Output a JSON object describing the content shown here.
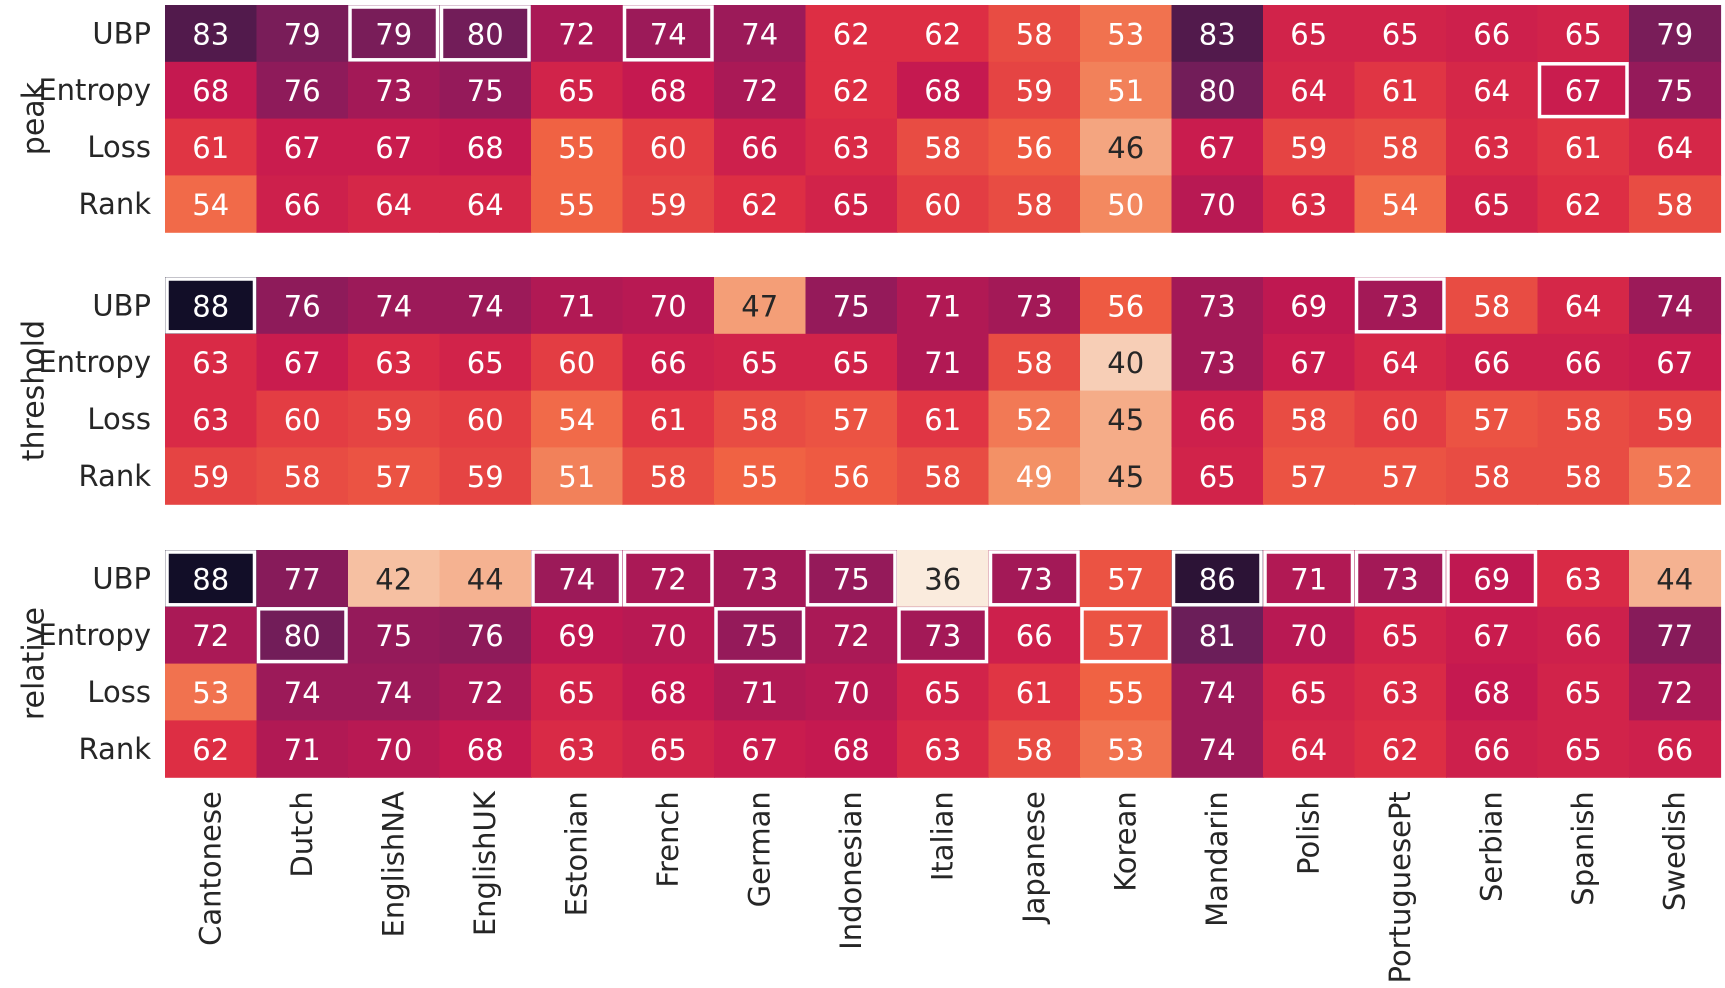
{
  "chart_data": {
    "type": "heatmap",
    "title": "",
    "xlabel": "",
    "ylabel": "",
    "value_range": [
      36,
      88
    ],
    "colormap": "rocket",
    "categories": [
      "Cantonese",
      "Dutch",
      "EnglishNA",
      "EnglishUK",
      "Estonian",
      "French",
      "German",
      "Indonesian",
      "Italian",
      "Japanese",
      "Korean",
      "Mandarin",
      "Polish",
      "PortuguesePt",
      "Serbian",
      "Spanish",
      "Swedish"
    ],
    "rows": [
      "UBP",
      "Entropy",
      "Loss",
      "Rank"
    ],
    "groups": [
      {
        "name": "peak",
        "series": [
          {
            "name": "UBP",
            "values": [
              83,
              79,
              79,
              80,
              72,
              74,
              74,
              62,
              62,
              58,
              53,
              83,
              65,
              65,
              66,
              65,
              79
            ]
          },
          {
            "name": "Entropy",
            "values": [
              68,
              76,
              73,
              75,
              65,
              68,
              72,
              62,
              68,
              59,
              51,
              80,
              64,
              61,
              64,
              67,
              75
            ]
          },
          {
            "name": "Loss",
            "values": [
              61,
              67,
              67,
              68,
              55,
              60,
              66,
              63,
              58,
              56,
              46,
              67,
              59,
              58,
              63,
              61,
              64
            ]
          },
          {
            "name": "Rank",
            "values": [
              54,
              66,
              64,
              64,
              55,
              59,
              62,
              65,
              60,
              58,
              50,
              70,
              63,
              54,
              65,
              62,
              58
            ]
          }
        ],
        "highlighted": [
          [
            0,
            2
          ],
          [
            0,
            3
          ],
          [
            0,
            5
          ],
          [
            1,
            15
          ]
        ]
      },
      {
        "name": "threshold",
        "series": [
          {
            "name": "UBP",
            "values": [
              88,
              76,
              74,
              74,
              71,
              70,
              47,
              75,
              71,
              73,
              56,
              73,
              69,
              73,
              58,
              64,
              74
            ]
          },
          {
            "name": "Entropy",
            "values": [
              63,
              67,
              63,
              65,
              60,
              66,
              65,
              65,
              71,
              58,
              40,
              73,
              67,
              64,
              66,
              66,
              67
            ]
          },
          {
            "name": "Loss",
            "values": [
              63,
              60,
              59,
              60,
              54,
              61,
              58,
              57,
              61,
              52,
              45,
              66,
              58,
              60,
              57,
              58,
              59
            ]
          },
          {
            "name": "Rank",
            "values": [
              59,
              58,
              57,
              59,
              51,
              58,
              55,
              56,
              58,
              49,
              45,
              65,
              57,
              57,
              58,
              58,
              52
            ]
          }
        ],
        "highlighted": [
          [
            0,
            0
          ],
          [
            0,
            13
          ]
        ]
      },
      {
        "name": "relative",
        "series": [
          {
            "name": "UBP",
            "values": [
              88,
              77,
              42,
              44,
              74,
              72,
              73,
              75,
              36,
              73,
              57,
              86,
              71,
              73,
              69,
              63,
              44
            ]
          },
          {
            "name": "Entropy",
            "values": [
              72,
              80,
              75,
              76,
              69,
              70,
              75,
              72,
              73,
              66,
              57,
              81,
              70,
              65,
              67,
              66,
              77
            ]
          },
          {
            "name": "Loss",
            "values": [
              53,
              74,
              74,
              72,
              65,
              68,
              71,
              70,
              65,
              61,
              55,
              74,
              65,
              63,
              68,
              65,
              72
            ]
          },
          {
            "name": "Rank",
            "values": [
              62,
              71,
              70,
              68,
              63,
              65,
              67,
              68,
              63,
              58,
              53,
              74,
              64,
              62,
              66,
              65,
              66
            ]
          }
        ],
        "highlighted": [
          [
            0,
            0
          ],
          [
            0,
            4
          ],
          [
            0,
            5
          ],
          [
            0,
            7
          ],
          [
            0,
            9
          ],
          [
            0,
            11
          ],
          [
            0,
            12
          ],
          [
            0,
            13
          ],
          [
            0,
            14
          ],
          [
            1,
            1
          ],
          [
            1,
            6
          ],
          [
            1,
            8
          ],
          [
            1,
            10
          ]
        ]
      }
    ],
    "highlight_color": "#ffffff"
  }
}
